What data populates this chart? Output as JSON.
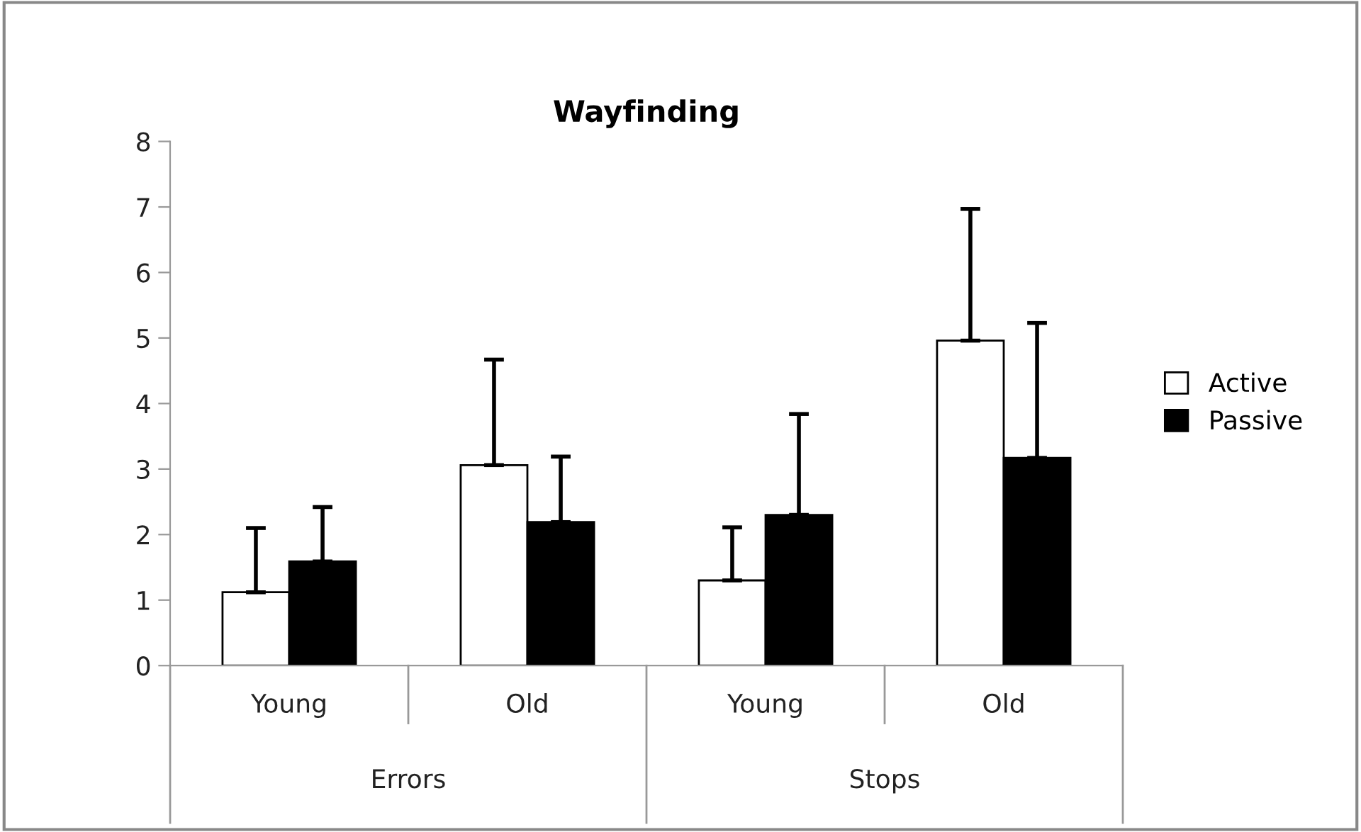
{
  "chart_data": {
    "type": "bar",
    "title": "Wayfinding",
    "categories": [
      "Young",
      "Old",
      "Young",
      "Old"
    ],
    "annotations": [
      "Errors",
      "Stops"
    ],
    "series": [
      {
        "name": "Active",
        "color": "#ffffff",
        "values": [
          1.12,
          3.06,
          1.3,
          4.96
        ],
        "errors": [
          [
            1.12,
            2.1
          ],
          [
            3.06,
            4.67
          ],
          [
            1.3,
            2.11
          ],
          [
            4.96,
            6.97
          ]
        ]
      },
      {
        "name": "Passive",
        "color": "#000000",
        "values": [
          1.59,
          2.19,
          2.3,
          3.17
        ],
        "errors": [
          [
            1.59,
            2.42
          ],
          [
            2.19,
            3.19
          ],
          [
            2.3,
            3.84
          ],
          [
            3.17,
            5.23
          ]
        ]
      }
    ],
    "ylim": [
      0,
      8
    ],
    "yticks": [
      0,
      1,
      2,
      3,
      4,
      5,
      6,
      7,
      8
    ],
    "grid": false,
    "legend": "right"
  }
}
